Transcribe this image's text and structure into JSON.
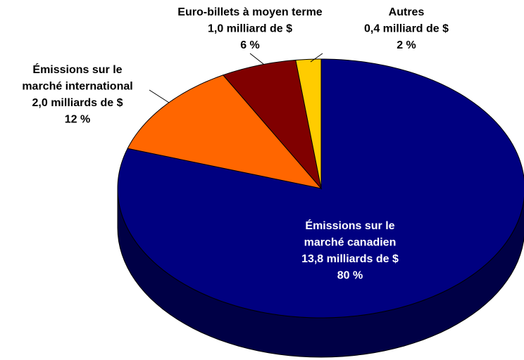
{
  "chart_data": {
    "type": "pie3d",
    "categories": [
      [
        "Émissions sur le",
        "marché canadien"
      ],
      [
        "Émissions sur le",
        "marché international"
      ],
      [
        "Euro-billets à moyen terme"
      ],
      [
        "Autres"
      ]
    ],
    "amounts": [
      13.8,
      2.0,
      1.0,
      0.4
    ],
    "amount_labels": [
      "13,8 milliards de $",
      "2,0 milliards de $",
      "1,0 milliard de $",
      "0,4 milliard de $"
    ],
    "values": [
      80,
      12,
      6,
      2
    ],
    "value_labels": [
      "80 %",
      "12 %",
      "6 %",
      "2 %"
    ],
    "colors": [
      "#000080",
      "#ff6600",
      "#800000",
      "#ffcc00"
    ]
  }
}
